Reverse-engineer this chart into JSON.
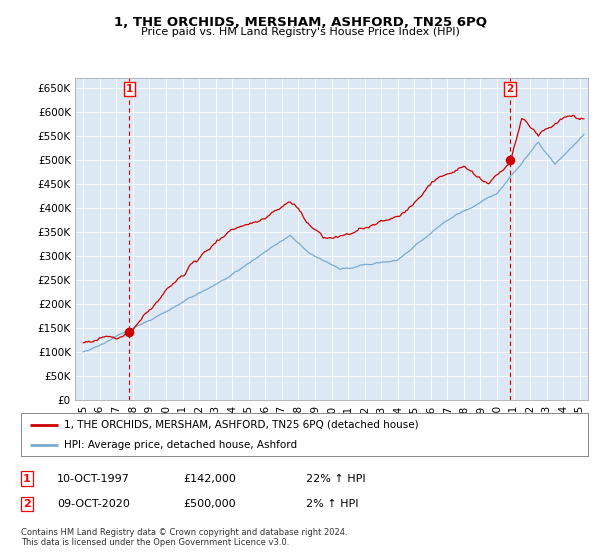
{
  "title": "1, THE ORCHIDS, MERSHAM, ASHFORD, TN25 6PQ",
  "subtitle": "Price paid vs. HM Land Registry's House Price Index (HPI)",
  "legend_line1": "1, THE ORCHIDS, MERSHAM, ASHFORD, TN25 6PQ (detached house)",
  "legend_line2": "HPI: Average price, detached house, Ashford",
  "transaction1_label": "1",
  "transaction1_date": "10-OCT-1997",
  "transaction1_price": "£142,000",
  "transaction1_hpi": "22% ↑ HPI",
  "transaction2_label": "2",
  "transaction2_date": "09-OCT-2020",
  "transaction2_price": "£500,000",
  "transaction2_hpi": "2% ↑ HPI",
  "footer": "Contains HM Land Registry data © Crown copyright and database right 2024.\nThis data is licensed under the Open Government Licence v3.0.",
  "xmin": 1994.5,
  "xmax": 2025.5,
  "ymin": 0,
  "ymax": 670000,
  "yticks": [
    0,
    50000,
    100000,
    150000,
    200000,
    250000,
    300000,
    350000,
    400000,
    450000,
    500000,
    550000,
    600000,
    650000
  ],
  "ytick_labels": [
    "£0",
    "£50K",
    "£100K",
    "£150K",
    "£200K",
    "£250K",
    "£300K",
    "£350K",
    "£400K",
    "£450K",
    "£500K",
    "£550K",
    "£600K",
    "£650K"
  ],
  "hpi_color": "#7aaad0",
  "price_color": "#cc0000",
  "marker_color": "#cc0000",
  "bg_color": "#ffffff",
  "plot_bg_color": "#dce9f5",
  "grid_color": "#ffffff",
  "transaction1_x": 1997.78,
  "transaction1_y": 142000,
  "transaction2_x": 2020.78,
  "transaction2_y": 500000,
  "xtick_years": [
    1995,
    1996,
    1997,
    1998,
    1999,
    2000,
    2001,
    2002,
    2003,
    2004,
    2005,
    2006,
    2007,
    2008,
    2009,
    2010,
    2011,
    2012,
    2013,
    2014,
    2015,
    2016,
    2017,
    2018,
    2019,
    2020,
    2021,
    2022,
    2023,
    2024,
    2025
  ],
  "xtick_labels": [
    "95",
    "96",
    "97",
    "98",
    "99",
    "00",
    "01",
    "02",
    "03",
    "04",
    "05",
    "06",
    "07",
    "08",
    "09",
    "10",
    "11",
    "12",
    "13",
    "14",
    "15",
    "16",
    "17",
    "18",
    "19",
    "20",
    "21",
    "22",
    "23",
    "24",
    "25"
  ]
}
